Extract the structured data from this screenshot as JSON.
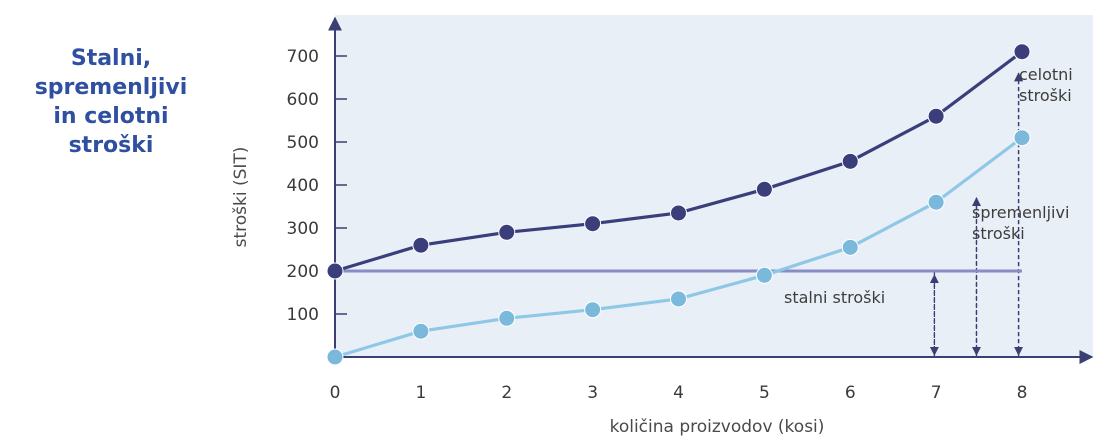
{
  "side_title": [
    "Stalni,",
    "spremenljivi",
    "in celotni",
    "stroški"
  ],
  "colors": {
    "total": "#3a3f7c",
    "variable": "#8fc8e6",
    "fixed": "#8a8cc4",
    "axis": "#3b3f74",
    "panel": "#e9eff7",
    "title": "#2f4fa0"
  },
  "chart_data": {
    "type": "line",
    "x": [
      0,
      1,
      2,
      3,
      4,
      5,
      6,
      7,
      8
    ],
    "xlabel": "količina proizvodov (kosi)",
    "ylabel": "stroški (SIT)",
    "xlim": [
      0,
      8
    ],
    "ylim": [
      0,
      700
    ],
    "yticks": [
      100,
      200,
      300,
      400,
      500,
      600,
      700
    ],
    "xticks": [
      0,
      1,
      2,
      3,
      4,
      5,
      6,
      7,
      8
    ],
    "series": [
      {
        "key": "total",
        "values": [
          200,
          260,
          290,
          310,
          335,
          390,
          455,
          560,
          710
        ]
      },
      {
        "key": "variable",
        "values": [
          0,
          60,
          90,
          110,
          135,
          190,
          255,
          360,
          510
        ]
      },
      {
        "key": "fixed",
        "values": [
          200,
          200,
          200,
          200,
          200,
          200,
          200,
          200,
          200
        ]
      }
    ],
    "annotations": [
      {
        "key": "fixed",
        "lines": [
          "stalni stroški"
        ]
      },
      {
        "key": "variable",
        "lines": [
          "spremenljivi",
          "stroški"
        ]
      },
      {
        "key": "total",
        "lines": [
          "celotni",
          "stroški"
        ]
      }
    ]
  }
}
